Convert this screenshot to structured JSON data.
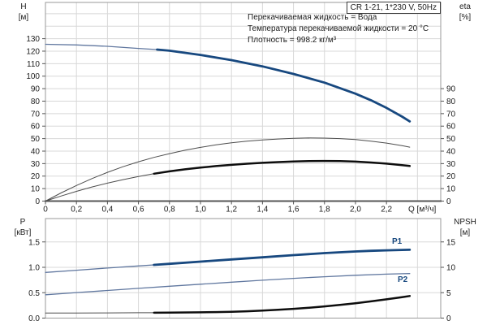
{
  "title_box": {
    "label": "CR 1-21, 1*230 V, 50Hz"
  },
  "annotations": [
    "Перекачиваемая жидкость = Вода",
    "Температура перекачиваемой жидкости = 20 °C",
    "Плотность = 998.2 кг/м³"
  ],
  "colors": {
    "curve_blue": "#17487f",
    "curve_blue_thin": "#60779f",
    "curve_black": "#0d0d0d",
    "curve_black_thin": "#4d4d4d",
    "grid": "#d8d8d8",
    "border": "#9a9a9a",
    "dark_axis": "#555555",
    "text": "#1c1c1c",
    "label_blue": "#17487f"
  },
  "chart_data": [
    {
      "type": "line",
      "name": "head-efficiency-chart",
      "x_axis": {
        "min": 0,
        "max": 2.55,
        "tick_values": [
          0,
          0.2,
          0.4,
          0.6,
          0.8,
          1,
          1.2,
          1.4,
          1.6,
          1.8,
          2,
          2.2
        ],
        "tick_labels": [
          "0",
          "0,2",
          "0,4",
          "0,6",
          "0,8",
          "1,0",
          "1,2",
          "1,4",
          "1,6",
          "1,8",
          "2,0",
          "2,2"
        ],
        "grid_values": [
          0.2,
          0.4,
          0.6,
          0.8,
          1,
          1.2,
          1.4,
          1.6,
          1.8,
          2,
          2.2,
          2.4
        ],
        "unit_label": "Q [м³/ч]",
        "show_labels": true
      },
      "y_left": {
        "title": "H",
        "unit": "[м]",
        "min": 0,
        "max": 159,
        "tick_values": [
          0,
          10,
          20,
          30,
          40,
          50,
          60,
          70,
          80,
          90,
          100,
          110,
          120,
          130
        ],
        "tick_labels": [
          "0",
          "10",
          "20",
          "30",
          "40",
          "50",
          "60",
          "70",
          "80",
          "90",
          "100",
          "110",
          "120",
          "130"
        ],
        "grid_values": [
          10,
          20,
          30,
          40,
          50,
          60,
          70,
          80,
          90,
          100,
          110,
          120,
          130,
          140,
          150
        ]
      },
      "y_right": {
        "title": "eta",
        "unit": "[%]",
        "scale_to_left": 1,
        "tick_values": [
          0,
          10,
          20,
          30,
          40,
          50,
          60,
          70,
          80,
          90
        ],
        "tick_labels": [
          "0",
          "10",
          "20",
          "30",
          "40",
          "50",
          "60",
          "70",
          "80",
          "90"
        ]
      },
      "series": [
        {
          "name": "H-Q-curve",
          "axis": "left",
          "palette": "blue",
          "thick_from": 0.72,
          "points": [
            [
              0,
              125.5
            ],
            [
              0.2,
              125
            ],
            [
              0.4,
              123.9
            ],
            [
              0.6,
              122.2
            ],
            [
              0.72,
              121.3
            ],
            [
              0.8,
              120.4
            ],
            [
              1,
              117
            ],
            [
              1.2,
              112.8
            ],
            [
              1.4,
              107.8
            ],
            [
              1.6,
              101.8
            ],
            [
              1.8,
              94.8
            ],
            [
              2,
              86
            ],
            [
              2.1,
              80.7
            ],
            [
              2.2,
              74.6
            ],
            [
              2.3,
              67.6
            ],
            [
              2.35,
              63.8
            ]
          ]
        },
        {
          "name": "eta-pump-curve",
          "axis": "right",
          "palette": "black",
          "thick_from": null,
          "points": [
            [
              0,
              0
            ],
            [
              0.1,
              6.5
            ],
            [
              0.2,
              12.5
            ],
            [
              0.3,
              18
            ],
            [
              0.4,
              23
            ],
            [
              0.5,
              27.5
            ],
            [
              0.6,
              31.5
            ],
            [
              0.7,
              35
            ],
            [
              0.8,
              38
            ],
            [
              0.9,
              40.7
            ],
            [
              1,
              43
            ],
            [
              1.1,
              45
            ],
            [
              1.2,
              46.6
            ],
            [
              1.3,
              47.9
            ],
            [
              1.4,
              48.9
            ],
            [
              1.5,
              49.7
            ],
            [
              1.6,
              50.2
            ],
            [
              1.7,
              50.5
            ],
            [
              1.8,
              50.4
            ],
            [
              1.9,
              50
            ],
            [
              2,
              49.2
            ],
            [
              2.1,
              48
            ],
            [
              2.2,
              46.4
            ],
            [
              2.3,
              44.4
            ],
            [
              2.35,
              43.2
            ]
          ]
        },
        {
          "name": "eta-total-curve",
          "axis": "right",
          "palette": "black",
          "thick_from": 0.7,
          "points": [
            [
              0,
              0
            ],
            [
              0.1,
              4
            ],
            [
              0.2,
              7.8
            ],
            [
              0.3,
              11.3
            ],
            [
              0.4,
              14.4
            ],
            [
              0.5,
              17.2
            ],
            [
              0.6,
              19.7
            ],
            [
              0.7,
              21.9
            ],
            [
              0.8,
              23.8
            ],
            [
              0.9,
              25.4
            ],
            [
              1,
              26.8
            ],
            [
              1.1,
              28
            ],
            [
              1.2,
              29
            ],
            [
              1.3,
              29.9
            ],
            [
              1.4,
              30.6
            ],
            [
              1.5,
              31.2
            ],
            [
              1.6,
              31.7
            ],
            [
              1.7,
              32
            ],
            [
              1.8,
              32.1
            ],
            [
              1.9,
              32
            ],
            [
              2,
              31.6
            ],
            [
              2.1,
              30.9
            ],
            [
              2.2,
              30
            ],
            [
              2.3,
              28.8
            ],
            [
              2.35,
              28.1
            ]
          ]
        }
      ]
    },
    {
      "type": "line",
      "name": "power-npsh-chart",
      "x_axis": {
        "min": 0,
        "max": 2.55,
        "tick_values": [],
        "tick_labels": [],
        "grid_values": [
          0.2,
          0.4,
          0.6,
          0.8,
          1,
          1.2,
          1.4,
          1.6,
          1.8,
          2,
          2.2,
          2.4
        ],
        "unit_label": "",
        "show_labels": false
      },
      "y_left": {
        "title": "P",
        "unit": "[кВт]",
        "min": 0,
        "max": 1.96,
        "tick_values": [
          0,
          0.5,
          1,
          1.5
        ],
        "tick_labels": [
          "0.0",
          "0.5",
          "1.0",
          "1.5"
        ],
        "grid_values": [
          0.5,
          1,
          1.5
        ]
      },
      "y_right": {
        "title": "NPSH",
        "unit": "[м]",
        "scale_to_left": 0.1,
        "tick_values": [
          0,
          5,
          10,
          15
        ],
        "tick_labels": [
          "0",
          "5",
          "10",
          "15"
        ]
      },
      "series": [
        {
          "name": "P1-curve",
          "label": "P1",
          "axis": "left",
          "palette": "blue",
          "thick_from": 0.7,
          "points": [
            [
              0,
              0.9
            ],
            [
              0.2,
              0.943
            ],
            [
              0.4,
              0.985
            ],
            [
              0.6,
              1.027
            ],
            [
              0.7,
              1.048
            ],
            [
              0.8,
              1.069
            ],
            [
              1,
              1.112
            ],
            [
              1.2,
              1.155
            ],
            [
              1.4,
              1.197
            ],
            [
              1.6,
              1.24
            ],
            [
              1.8,
              1.28
            ],
            [
              2,
              1.312
            ],
            [
              2.1,
              1.325
            ],
            [
              2.2,
              1.335
            ],
            [
              2.3,
              1.343
            ],
            [
              2.35,
              1.345
            ]
          ]
        },
        {
          "name": "P2-curve",
          "label": "P2",
          "axis": "left",
          "palette": "blue",
          "thick_from": null,
          "points": [
            [
              0,
              0.46
            ],
            [
              0.2,
              0.502
            ],
            [
              0.4,
              0.544
            ],
            [
              0.6,
              0.586
            ],
            [
              0.8,
              0.627
            ],
            [
              1,
              0.668
            ],
            [
              1.2,
              0.708
            ],
            [
              1.4,
              0.746
            ],
            [
              1.6,
              0.782
            ],
            [
              1.8,
              0.815
            ],
            [
              2,
              0.843
            ],
            [
              2.2,
              0.866
            ],
            [
              2.3,
              0.874
            ],
            [
              2.35,
              0.877
            ]
          ]
        },
        {
          "name": "NPSH-curve",
          "label": "",
          "axis": "right",
          "palette": "black",
          "thick_from": 0.7,
          "points": [
            [
              0,
              1
            ],
            [
              0.2,
              1.01
            ],
            [
              0.4,
              1.03
            ],
            [
              0.6,
              1.05
            ],
            [
              0.7,
              1.06
            ],
            [
              0.8,
              1.08
            ],
            [
              1,
              1.13
            ],
            [
              1.1,
              1.18
            ],
            [
              1.2,
              1.25
            ],
            [
              1.3,
              1.35
            ],
            [
              1.4,
              1.48
            ],
            [
              1.5,
              1.63
            ],
            [
              1.6,
              1.82
            ],
            [
              1.7,
              2.04
            ],
            [
              1.8,
              2.3
            ],
            [
              1.9,
              2.6
            ],
            [
              2,
              2.93
            ],
            [
              2.1,
              3.3
            ],
            [
              2.2,
              3.7
            ],
            [
              2.3,
              4.13
            ],
            [
              2.35,
              4.35
            ]
          ]
        }
      ]
    }
  ]
}
